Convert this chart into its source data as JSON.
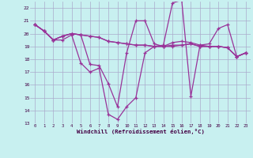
{
  "background_color": "#c8f0f0",
  "grid_color": "#aaaacc",
  "line_color": "#993399",
  "xlim": [
    -0.5,
    23.5
  ],
  "ylim": [
    13,
    22.5
  ],
  "ytick_values": [
    13,
    14,
    15,
    16,
    17,
    18,
    19,
    20,
    21,
    22
  ],
  "xlabel": "Windchill (Refroidissement éolien,°C)",
  "series": [
    [
      20.7,
      20.2,
      19.5,
      19.5,
      19.9,
      17.7,
      17.0,
      17.3,
      13.7,
      13.3,
      14.3,
      15.0,
      18.5,
      19.0,
      19.1,
      22.4,
      22.6,
      15.1,
      19.1,
      19.2,
      20.4,
      20.7,
      18.2,
      18.5
    ],
    [
      20.7,
      20.2,
      19.5,
      19.8,
      20.0,
      19.9,
      17.6,
      17.5,
      16.1,
      14.3,
      18.5,
      21.0,
      21.0,
      19.2,
      19.0,
      19.0,
      19.1,
      19.2,
      19.0,
      19.0,
      19.0,
      18.9,
      18.2,
      18.5
    ],
    [
      20.7,
      20.2,
      19.5,
      19.8,
      20.0,
      19.9,
      19.8,
      19.7,
      19.4,
      19.3,
      19.2,
      19.1,
      19.1,
      19.0,
      19.0,
      19.1,
      19.1,
      19.2,
      19.0,
      19.0,
      19.0,
      18.9,
      18.2,
      18.5
    ],
    [
      20.7,
      20.2,
      19.5,
      19.8,
      20.0,
      19.9,
      19.8,
      19.7,
      19.4,
      19.3,
      19.2,
      19.1,
      19.1,
      19.0,
      19.0,
      19.3,
      19.4,
      19.3,
      19.1,
      19.0,
      19.0,
      18.9,
      18.2,
      18.5
    ]
  ]
}
